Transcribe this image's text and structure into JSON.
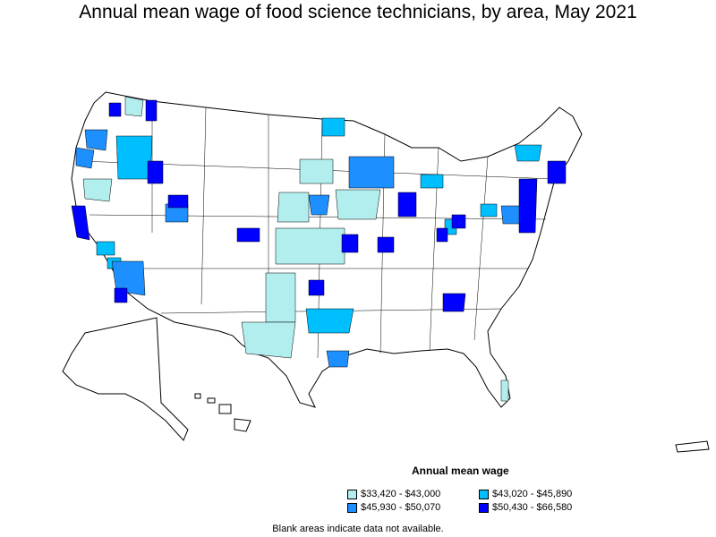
{
  "title": "Annual mean wage of food science technicians, by area, May 2021",
  "legend": {
    "title": "Annual mean wage",
    "items": [
      {
        "label": "$33,420 - $43,000",
        "color": "#b2eeee"
      },
      {
        "label": "$43,020 - $45,890",
        "color": "#00bfff"
      },
      {
        "label": "$45,930 - $50,070",
        "color": "#1e8fff"
      },
      {
        "label": "$50,430 - $66,580",
        "color": "#0000ff"
      }
    ]
  },
  "note": "Blank areas indicate data not available."
}
